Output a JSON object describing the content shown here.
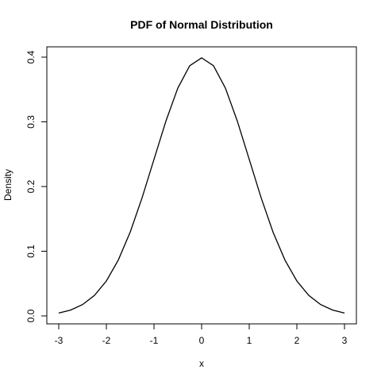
{
  "chart_data": {
    "type": "line",
    "title": "PDF of Normal Distribution",
    "xlabel": "x",
    "ylabel": "Density",
    "xlim": [
      -3,
      3
    ],
    "ylim": [
      0.0,
      0.4
    ],
    "x_ticks": [
      -3,
      -2,
      -1,
      0,
      1,
      2,
      3
    ],
    "x_tick_labels": [
      "-3",
      "-2",
      "-1",
      "0",
      "1",
      "2",
      "3"
    ],
    "y_ticks": [
      0.0,
      0.1,
      0.2,
      0.3,
      0.4
    ],
    "y_tick_labels": [
      "0.0",
      "0.1",
      "0.2",
      "0.3",
      "0.4"
    ],
    "grid": false,
    "legend": "none",
    "series": [
      {
        "color": "#000000",
        "x": [
          -3.0,
          -2.75,
          -2.5,
          -2.25,
          -2.0,
          -1.75,
          -1.5,
          -1.25,
          -1.0,
          -0.75,
          -0.5,
          -0.25,
          0.0,
          0.25,
          0.5,
          0.75,
          1.0,
          1.25,
          1.5,
          1.75,
          2.0,
          2.25,
          2.5,
          2.75,
          3.0
        ],
        "y": [
          0.0044,
          0.0091,
          0.0175,
          0.0317,
          0.054,
          0.0863,
          0.1295,
          0.1826,
          0.242,
          0.3011,
          0.3521,
          0.3867,
          0.3989,
          0.3867,
          0.3521,
          0.3011,
          0.242,
          0.1826,
          0.1295,
          0.0863,
          0.054,
          0.0317,
          0.0175,
          0.0091,
          0.0044
        ]
      }
    ]
  }
}
